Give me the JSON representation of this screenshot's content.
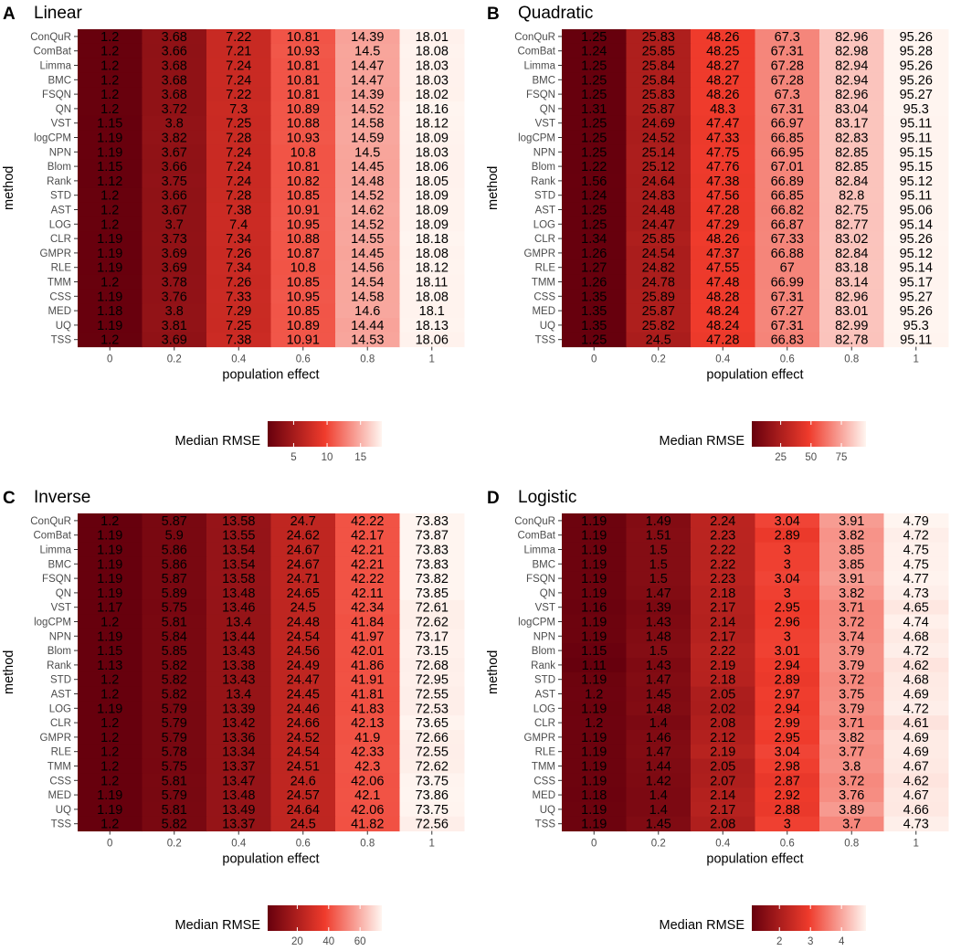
{
  "chart_data": [
    {
      "type": "heatmap",
      "label": "A",
      "title": "Linear",
      "xlabel": "population effect",
      "ylabel": "method",
      "x": [
        "0",
        "0.2",
        "0.4",
        "0.6",
        "0.8",
        "1"
      ],
      "y": [
        "ConQuR",
        "ComBat",
        "Limma",
        "BMC",
        "FSQN",
        "QN",
        "VST",
        "logCPM",
        "NPN",
        "Blom",
        "Rank",
        "STD",
        "AST",
        "LOG",
        "CLR",
        "GMPR",
        "RLE",
        "TMM",
        "CSS",
        "MED",
        "UQ",
        "TSS"
      ],
      "values": [
        [
          1.2,
          3.68,
          7.22,
          10.81,
          14.39,
          18.01
        ],
        [
          1.2,
          3.66,
          7.21,
          10.93,
          14.5,
          18.08
        ],
        [
          1.2,
          3.68,
          7.24,
          10.81,
          14.47,
          18.03
        ],
        [
          1.2,
          3.68,
          7.24,
          10.81,
          14.47,
          18.03
        ],
        [
          1.2,
          3.68,
          7.22,
          10.81,
          14.39,
          18.02
        ],
        [
          1.2,
          3.72,
          7.3,
          10.89,
          14.52,
          18.16
        ],
        [
          1.15,
          3.8,
          7.25,
          10.88,
          14.58,
          18.12
        ],
        [
          1.19,
          3.82,
          7.28,
          10.93,
          14.59,
          18.09
        ],
        [
          1.19,
          3.67,
          7.24,
          10.8,
          14.5,
          18.03
        ],
        [
          1.15,
          3.66,
          7.24,
          10.81,
          14.45,
          18.06
        ],
        [
          1.12,
          3.75,
          7.24,
          10.82,
          14.48,
          18.05
        ],
        [
          1.2,
          3.66,
          7.28,
          10.85,
          14.52,
          18.09
        ],
        [
          1.2,
          3.67,
          7.38,
          10.91,
          14.62,
          18.09
        ],
        [
          1.2,
          3.7,
          7.4,
          10.95,
          14.52,
          18.09
        ],
        [
          1.19,
          3.73,
          7.34,
          10.88,
          14.55,
          18.18
        ],
        [
          1.19,
          3.69,
          7.26,
          10.87,
          14.45,
          18.08
        ],
        [
          1.19,
          3.69,
          7.34,
          10.8,
          14.56,
          18.12
        ],
        [
          1.2,
          3.78,
          7.26,
          10.85,
          14.54,
          18.11
        ],
        [
          1.19,
          3.76,
          7.33,
          10.95,
          14.58,
          18.08
        ],
        [
          1.18,
          3.8,
          7.29,
          10.85,
          14.6,
          18.1
        ],
        [
          1.19,
          3.81,
          7.25,
          10.89,
          14.44,
          18.13
        ],
        [
          1.2,
          3.69,
          7.38,
          10.91,
          14.53,
          18.06
        ]
      ],
      "color_min": 1.12,
      "color_max": 18.18,
      "legend_title": "Median RMSE",
      "legend_ticks": [
        5,
        10,
        15
      ]
    },
    {
      "type": "heatmap",
      "label": "B",
      "title": "Quadratic",
      "xlabel": "population effect",
      "ylabel": "method",
      "x": [
        "0",
        "0.2",
        "0.4",
        "0.6",
        "0.8",
        "1"
      ],
      "y": [
        "ConQuR",
        "ComBat",
        "Limma",
        "BMC",
        "FSQN",
        "QN",
        "VST",
        "logCPM",
        "NPN",
        "Blom",
        "Rank",
        "STD",
        "AST",
        "LOG",
        "CLR",
        "GMPR",
        "RLE",
        "TMM",
        "CSS",
        "MED",
        "UQ",
        "TSS"
      ],
      "values": [
        [
          1.25,
          25.83,
          48.26,
          67.3,
          82.96,
          95.26
        ],
        [
          1.24,
          25.85,
          48.25,
          67.31,
          82.98,
          95.28
        ],
        [
          1.25,
          25.84,
          48.27,
          67.28,
          82.94,
          95.26
        ],
        [
          1.25,
          25.84,
          48.27,
          67.28,
          82.94,
          95.26
        ],
        [
          1.25,
          25.83,
          48.26,
          67.3,
          82.96,
          95.27
        ],
        [
          1.31,
          25.87,
          48.3,
          67.31,
          83.04,
          95.3
        ],
        [
          1.25,
          24.69,
          47.47,
          66.97,
          83.17,
          95.11
        ],
        [
          1.25,
          24.52,
          47.33,
          66.85,
          82.83,
          95.11
        ],
        [
          1.25,
          25.14,
          47.75,
          66.95,
          82.85,
          95.15
        ],
        [
          1.22,
          25.12,
          47.76,
          67.01,
          82.85,
          95.15
        ],
        [
          1.56,
          24.64,
          47.38,
          66.89,
          82.84,
          95.12
        ],
        [
          1.24,
          24.83,
          47.56,
          66.85,
          82.8,
          95.11
        ],
        [
          1.25,
          24.48,
          47.28,
          66.82,
          82.75,
          95.06
        ],
        [
          1.25,
          24.47,
          47.29,
          66.87,
          82.77,
          95.14
        ],
        [
          1.34,
          25.85,
          48.26,
          67.33,
          83.02,
          95.26
        ],
        [
          1.26,
          24.54,
          47.37,
          66.88,
          82.84,
          95.12
        ],
        [
          1.27,
          24.82,
          47.55,
          67,
          83.18,
          95.14
        ],
        [
          1.26,
          24.78,
          47.48,
          66.99,
          83.14,
          95.17
        ],
        [
          1.35,
          25.89,
          48.28,
          67.31,
          82.96,
          95.27
        ],
        [
          1.35,
          25.87,
          48.24,
          67.27,
          83.01,
          95.26
        ],
        [
          1.35,
          25.82,
          48.24,
          67.31,
          82.99,
          95.3
        ],
        [
          1.25,
          24.5,
          47.28,
          66.83,
          82.78,
          95.11
        ]
      ],
      "color_min": 1.22,
      "color_max": 95.3,
      "legend_title": "Median RMSE",
      "legend_ticks": [
        25,
        50,
        75
      ]
    },
    {
      "type": "heatmap",
      "label": "C",
      "title": "Inverse",
      "xlabel": "population effect",
      "ylabel": "method",
      "x": [
        "0",
        "0.2",
        "0.4",
        "0.6",
        "0.8",
        "1"
      ],
      "y": [
        "ConQuR",
        "ComBat",
        "Limma",
        "BMC",
        "FSQN",
        "QN",
        "VST",
        "logCPM",
        "NPN",
        "Blom",
        "Rank",
        "STD",
        "AST",
        "LOG",
        "CLR",
        "GMPR",
        "RLE",
        "TMM",
        "CSS",
        "MED",
        "UQ",
        "TSS"
      ],
      "values": [
        [
          1.2,
          5.87,
          13.58,
          24.7,
          42.22,
          73.83
        ],
        [
          1.19,
          5.9,
          13.55,
          24.62,
          42.17,
          73.87
        ],
        [
          1.19,
          5.86,
          13.54,
          24.67,
          42.21,
          73.83
        ],
        [
          1.19,
          5.86,
          13.54,
          24.67,
          42.21,
          73.83
        ],
        [
          1.19,
          5.87,
          13.58,
          24.71,
          42.22,
          73.82
        ],
        [
          1.19,
          5.89,
          13.48,
          24.65,
          42.11,
          73.85
        ],
        [
          1.17,
          5.75,
          13.46,
          24.5,
          42.34,
          72.61
        ],
        [
          1.2,
          5.81,
          13.4,
          24.48,
          41.84,
          72.62
        ],
        [
          1.19,
          5.84,
          13.44,
          24.54,
          41.97,
          73.17
        ],
        [
          1.15,
          5.85,
          13.43,
          24.56,
          42.01,
          73.15
        ],
        [
          1.13,
          5.82,
          13.38,
          24.49,
          41.86,
          72.68
        ],
        [
          1.2,
          5.82,
          13.43,
          24.47,
          41.91,
          72.95
        ],
        [
          1.2,
          5.82,
          13.4,
          24.45,
          41.81,
          72.55
        ],
        [
          1.19,
          5.79,
          13.39,
          24.46,
          41.83,
          72.53
        ],
        [
          1.2,
          5.79,
          13.42,
          24.66,
          42.13,
          73.65
        ],
        [
          1.2,
          5.79,
          13.36,
          24.52,
          41.9,
          72.66
        ],
        [
          1.2,
          5.78,
          13.34,
          24.54,
          42.33,
          72.55
        ],
        [
          1.2,
          5.75,
          13.37,
          24.51,
          42.3,
          72.62
        ],
        [
          1.2,
          5.81,
          13.47,
          24.6,
          42.06,
          73.75
        ],
        [
          1.19,
          5.79,
          13.48,
          24.57,
          42.1,
          73.86
        ],
        [
          1.19,
          5.81,
          13.49,
          24.64,
          42.06,
          73.75
        ],
        [
          1.2,
          5.82,
          13.37,
          24.5,
          41.82,
          72.56
        ]
      ],
      "color_min": 1.13,
      "color_max": 73.87,
      "legend_title": "Median RMSE",
      "legend_ticks": [
        20,
        40,
        60
      ]
    },
    {
      "type": "heatmap",
      "label": "D",
      "title": "Logistic",
      "xlabel": "population effect",
      "ylabel": "method",
      "x": [
        "0",
        "0.2",
        "0.4",
        "0.6",
        "0.8",
        "1"
      ],
      "y": [
        "ConQuR",
        "ComBat",
        "Limma",
        "BMC",
        "FSQN",
        "QN",
        "VST",
        "logCPM",
        "NPN",
        "Blom",
        "Rank",
        "STD",
        "AST",
        "LOG",
        "CLR",
        "GMPR",
        "RLE",
        "TMM",
        "CSS",
        "MED",
        "UQ",
        "TSS"
      ],
      "values": [
        [
          1.19,
          1.49,
          2.24,
          3.04,
          3.91,
          4.79
        ],
        [
          1.19,
          1.51,
          2.23,
          2.89,
          3.82,
          4.72
        ],
        [
          1.19,
          1.5,
          2.22,
          3,
          3.85,
          4.75
        ],
        [
          1.19,
          1.5,
          2.22,
          3,
          3.85,
          4.75
        ],
        [
          1.19,
          1.5,
          2.23,
          3.04,
          3.91,
          4.77
        ],
        [
          1.19,
          1.47,
          2.18,
          3,
          3.82,
          4.73
        ],
        [
          1.16,
          1.39,
          2.17,
          2.95,
          3.71,
          4.65
        ],
        [
          1.19,
          1.43,
          2.14,
          2.96,
          3.72,
          4.74
        ],
        [
          1.19,
          1.48,
          2.17,
          3,
          3.74,
          4.68
        ],
        [
          1.15,
          1.5,
          2.22,
          3.01,
          3.79,
          4.72
        ],
        [
          1.11,
          1.43,
          2.19,
          2.94,
          3.79,
          4.62
        ],
        [
          1.19,
          1.47,
          2.18,
          2.89,
          3.72,
          4.68
        ],
        [
          1.2,
          1.45,
          2.05,
          2.97,
          3.75,
          4.69
        ],
        [
          1.19,
          1.48,
          2.02,
          2.94,
          3.79,
          4.72
        ],
        [
          1.2,
          1.4,
          2.08,
          2.99,
          3.71,
          4.61
        ],
        [
          1.19,
          1.46,
          2.12,
          2.95,
          3.82,
          4.69
        ],
        [
          1.19,
          1.47,
          2.19,
          3.04,
          3.77,
          4.69
        ],
        [
          1.19,
          1.44,
          2.05,
          2.98,
          3.8,
          4.67
        ],
        [
          1.19,
          1.42,
          2.07,
          2.87,
          3.72,
          4.62
        ],
        [
          1.18,
          1.4,
          2.14,
          2.92,
          3.76,
          4.67
        ],
        [
          1.19,
          1.4,
          2.17,
          2.88,
          3.89,
          4.66
        ],
        [
          1.19,
          1.45,
          2.08,
          3,
          3.7,
          4.73
        ]
      ],
      "color_min": 1.11,
      "color_max": 4.79,
      "legend_title": "Median RMSE",
      "legend_ticks": [
        2,
        3,
        4
      ]
    }
  ]
}
